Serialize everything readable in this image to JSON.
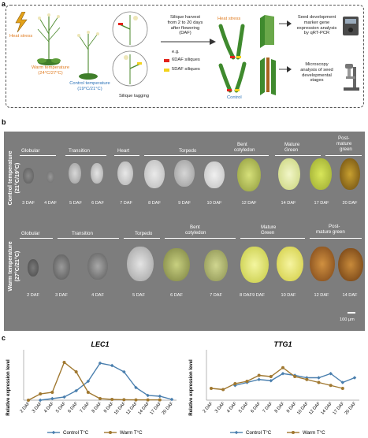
{
  "panel_a": {
    "label": "a",
    "heat_stress_label": "Heat stress",
    "warm_label": "Warm temperature",
    "warm_temp": "(24°C/27°C)",
    "control_label": "Control temperature",
    "control_temp": "(19°C/21°C)",
    "tagging_label": "Silique tagging",
    "harvest_text": [
      "Silique harvest",
      "from 2 to 20 days",
      "after flowering",
      "(DAF)"
    ],
    "eg_label": "e.g.",
    "silique_6daf": "6DAF siliques",
    "silique_5daf": "5DAF siliques",
    "heat_stress_center": "Heat stress",
    "control_center": "Control",
    "qpcr_text": [
      "Seed development",
      "marker gene",
      "expression analysis",
      "by qRT-PCR"
    ],
    "microscopy_text": [
      "Microscopy",
      "analysis of seed",
      "developmental",
      "stages"
    ],
    "colors": {
      "red_tag": "#e2231a",
      "yellow_tag": "#f2d21b",
      "heat": "#e07b1f",
      "control": "#2b72b8"
    }
  },
  "panel_b": {
    "label": "b",
    "control_band": {
      "label": "Control temperature",
      "temp": "(21°C/19°C)"
    },
    "warm_band": {
      "label": "Warm temperature",
      "temp": "(27°C/21°C)"
    },
    "control_stages": [
      "Globular",
      "Transition",
      "Heart",
      "Torpedo",
      "Bent",
      "cotyledon",
      "Mature",
      "Green",
      "Post-",
      "mature",
      "green"
    ],
    "control_daf": [
      "3 DAF",
      "4 DAF",
      "5 DAF",
      "6 DAF",
      "7 DAF",
      "8 DAF",
      "9 DAF",
      "10 DAF",
      "12 DAF",
      "14 DAF",
      "17 DAF",
      "20 DAF"
    ],
    "warm_stages": [
      "Globular",
      "Transition",
      "Torpedo",
      "Bent",
      "cotyledon",
      "Mature",
      "Green",
      "Post-",
      "mature green"
    ],
    "warm_daf": [
      "2 DAF",
      "3 DAF",
      "4 DAF",
      "5 DAF",
      "6 DAF",
      "7 DAF",
      "8 DAF",
      "9 DAF",
      "10 DAF",
      "12 DAF",
      "14 DAF"
    ],
    "scale_bar": "100 µm"
  },
  "panel_c": {
    "label": "c"
  },
  "chart_data": [
    {
      "type": "line",
      "title": "LEC1",
      "ylabel": "Relative expression level",
      "categories": [
        "2 DAF",
        "3 DAF",
        "4 DAF",
        "5 DAF",
        "6 DAF",
        "7 DAF",
        "8 DAF",
        "9 DAF",
        "10 DAF",
        "12 DAF",
        "14 DAF",
        "17 DAF",
        "20 DAF"
      ],
      "ylim": [
        0,
        0.3
      ],
      "series": [
        {
          "name": "Control T°C",
          "color": "#4a7fae",
          "values": [
            null,
            0.0,
            0.01,
            0.02,
            0.06,
            0.12,
            0.235,
            0.22,
            0.18,
            0.08,
            0.03,
            0.025,
            0.005
          ]
        },
        {
          "name": "Warm T°C",
          "color": "#a07830",
          "values": [
            0.0,
            0.04,
            0.05,
            0.24,
            0.18,
            0.05,
            0.01,
            0.005,
            0.003,
            0.002,
            0.002,
            0.002,
            null
          ]
        }
      ],
      "legend": "bottom"
    },
    {
      "type": "line",
      "title": "TTG1",
      "ylabel": "Relative expression level",
      "categories": [
        "2 DAF",
        "3 DAF",
        "4 DAF",
        "5 DAF",
        "6 DAF",
        "7 DAF",
        "8 DAF",
        "9 DAF",
        "10 DAF",
        "12 DAF",
        "14 DAF",
        "17 DAF",
        "20 DAF"
      ],
      "ylim": [
        0,
        0.8
      ],
      "series": [
        {
          "name": "Control T°C",
          "color": "#4a7fae",
          "values": [
            null,
            null,
            0.25,
            0.3,
            0.35,
            0.33,
            0.45,
            0.42,
            0.38,
            0.38,
            0.45,
            0.3,
            0.38
          ]
        },
        {
          "name": "Warm T°C",
          "color": "#a07830",
          "values": [
            0.2,
            0.18,
            0.28,
            0.32,
            0.42,
            0.4,
            0.55,
            0.4,
            0.35,
            0.3,
            0.25,
            0.2,
            null
          ]
        }
      ],
      "legend": "bottom"
    }
  ]
}
